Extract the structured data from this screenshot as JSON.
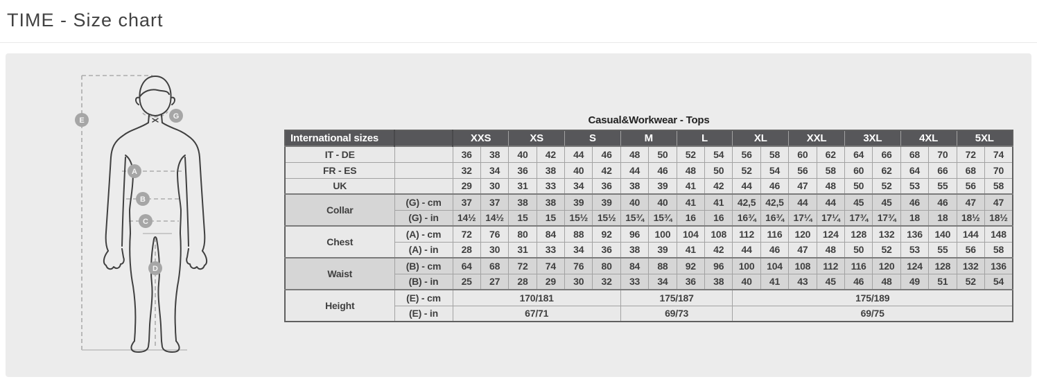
{
  "page": {
    "title": "TIME - Size chart"
  },
  "colors": {
    "panel_bg": "#ececec",
    "header_bg": "#57575a",
    "row_light": "#e9e9e9",
    "row_dark": "#d6d6d6",
    "figure_label_bg": "#a6a6a6"
  },
  "figure": {
    "labels": {
      "height": "E",
      "collar": "G",
      "chest": "A",
      "waist": "B",
      "hip": "C",
      "inseam": "D"
    }
  },
  "chart": {
    "caption": "Casual&Workwear - Tops",
    "header": {
      "col1": "International sizes",
      "sizes": [
        "XXS",
        "XS",
        "S",
        "M",
        "L",
        "XL",
        "XXL",
        "3XL",
        "4XL",
        "5XL"
      ]
    },
    "simple_rows": [
      {
        "label": "IT - DE",
        "values": [
          "36",
          "38",
          "40",
          "42",
          "44",
          "46",
          "48",
          "50",
          "52",
          "54",
          "56",
          "58",
          "60",
          "62",
          "64",
          "66",
          "68",
          "70",
          "72",
          "74"
        ]
      },
      {
        "label": "FR - ES",
        "values": [
          "32",
          "34",
          "36",
          "38",
          "40",
          "42",
          "44",
          "46",
          "48",
          "50",
          "52",
          "54",
          "56",
          "58",
          "60",
          "62",
          "64",
          "66",
          "68",
          "70"
        ]
      },
      {
        "label": "UK",
        "values": [
          "29",
          "30",
          "31",
          "33",
          "34",
          "36",
          "38",
          "39",
          "41",
          "42",
          "44",
          "46",
          "47",
          "48",
          "50",
          "52",
          "53",
          "55",
          "56",
          "58"
        ]
      }
    ],
    "groups": [
      {
        "label": "Collar",
        "shade": "dark",
        "rows": [
          {
            "unit": "(G) - cm",
            "values": [
              "37",
              "37",
              "38",
              "38",
              "39",
              "39",
              "40",
              "40",
              "41",
              "41",
              "42,5",
              "42,5",
              "44",
              "44",
              "45",
              "45",
              "46",
              "46",
              "47",
              "47"
            ]
          },
          {
            "unit": "(G)  - in",
            "values": [
              "14½",
              "14½",
              "15",
              "15",
              "15½",
              "15½",
              "15¾",
              "15¾",
              "16",
              "16",
              "16¾",
              "16¾",
              "17¼",
              "17¼",
              "17¾",
              "17¾",
              "18",
              "18",
              "18½",
              "18½"
            ]
          }
        ]
      },
      {
        "label": "Chest",
        "shade": "light",
        "rows": [
          {
            "unit": "(A) - cm",
            "values": [
              "72",
              "76",
              "80",
              "84",
              "88",
              "92",
              "96",
              "100",
              "104",
              "108",
              "112",
              "116",
              "120",
              "124",
              "128",
              "132",
              "136",
              "140",
              "144",
              "148"
            ]
          },
          {
            "unit": "(A) - in",
            "values": [
              "28",
              "30",
              "31",
              "33",
              "34",
              "36",
              "38",
              "39",
              "41",
              "42",
              "44",
              "46",
              "47",
              "48",
              "50",
              "52",
              "53",
              "55",
              "56",
              "58"
            ]
          }
        ]
      },
      {
        "label": "Waist",
        "shade": "dark",
        "rows": [
          {
            "unit": "(B) - cm",
            "values": [
              "64",
              "68",
              "72",
              "74",
              "76",
              "80",
              "84",
              "88",
              "92",
              "96",
              "100",
              "104",
              "108",
              "112",
              "116",
              "120",
              "124",
              "128",
              "132",
              "136"
            ]
          },
          {
            "unit": "(B) - in",
            "values": [
              "25",
              "27",
              "28",
              "29",
              "30",
              "32",
              "33",
              "34",
              "36",
              "38",
              "40",
              "41",
              "43",
              "45",
              "46",
              "48",
              "49",
              "51",
              "52",
              "54"
            ]
          }
        ]
      },
      {
        "label": "Height",
        "shade": "light",
        "rows": [
          {
            "unit": "(E) - cm",
            "spans": [
              {
                "span": 6,
                "value": "170/181"
              },
              {
                "span": 4,
                "value": "175/187"
              },
              {
                "span": 10,
                "value": "175/189"
              }
            ]
          },
          {
            "unit": "(E) - in",
            "spans": [
              {
                "span": 6,
                "value": "67/71"
              },
              {
                "span": 4,
                "value": "69/73"
              },
              {
                "span": 10,
                "value": "69/75"
              }
            ]
          }
        ]
      }
    ]
  }
}
